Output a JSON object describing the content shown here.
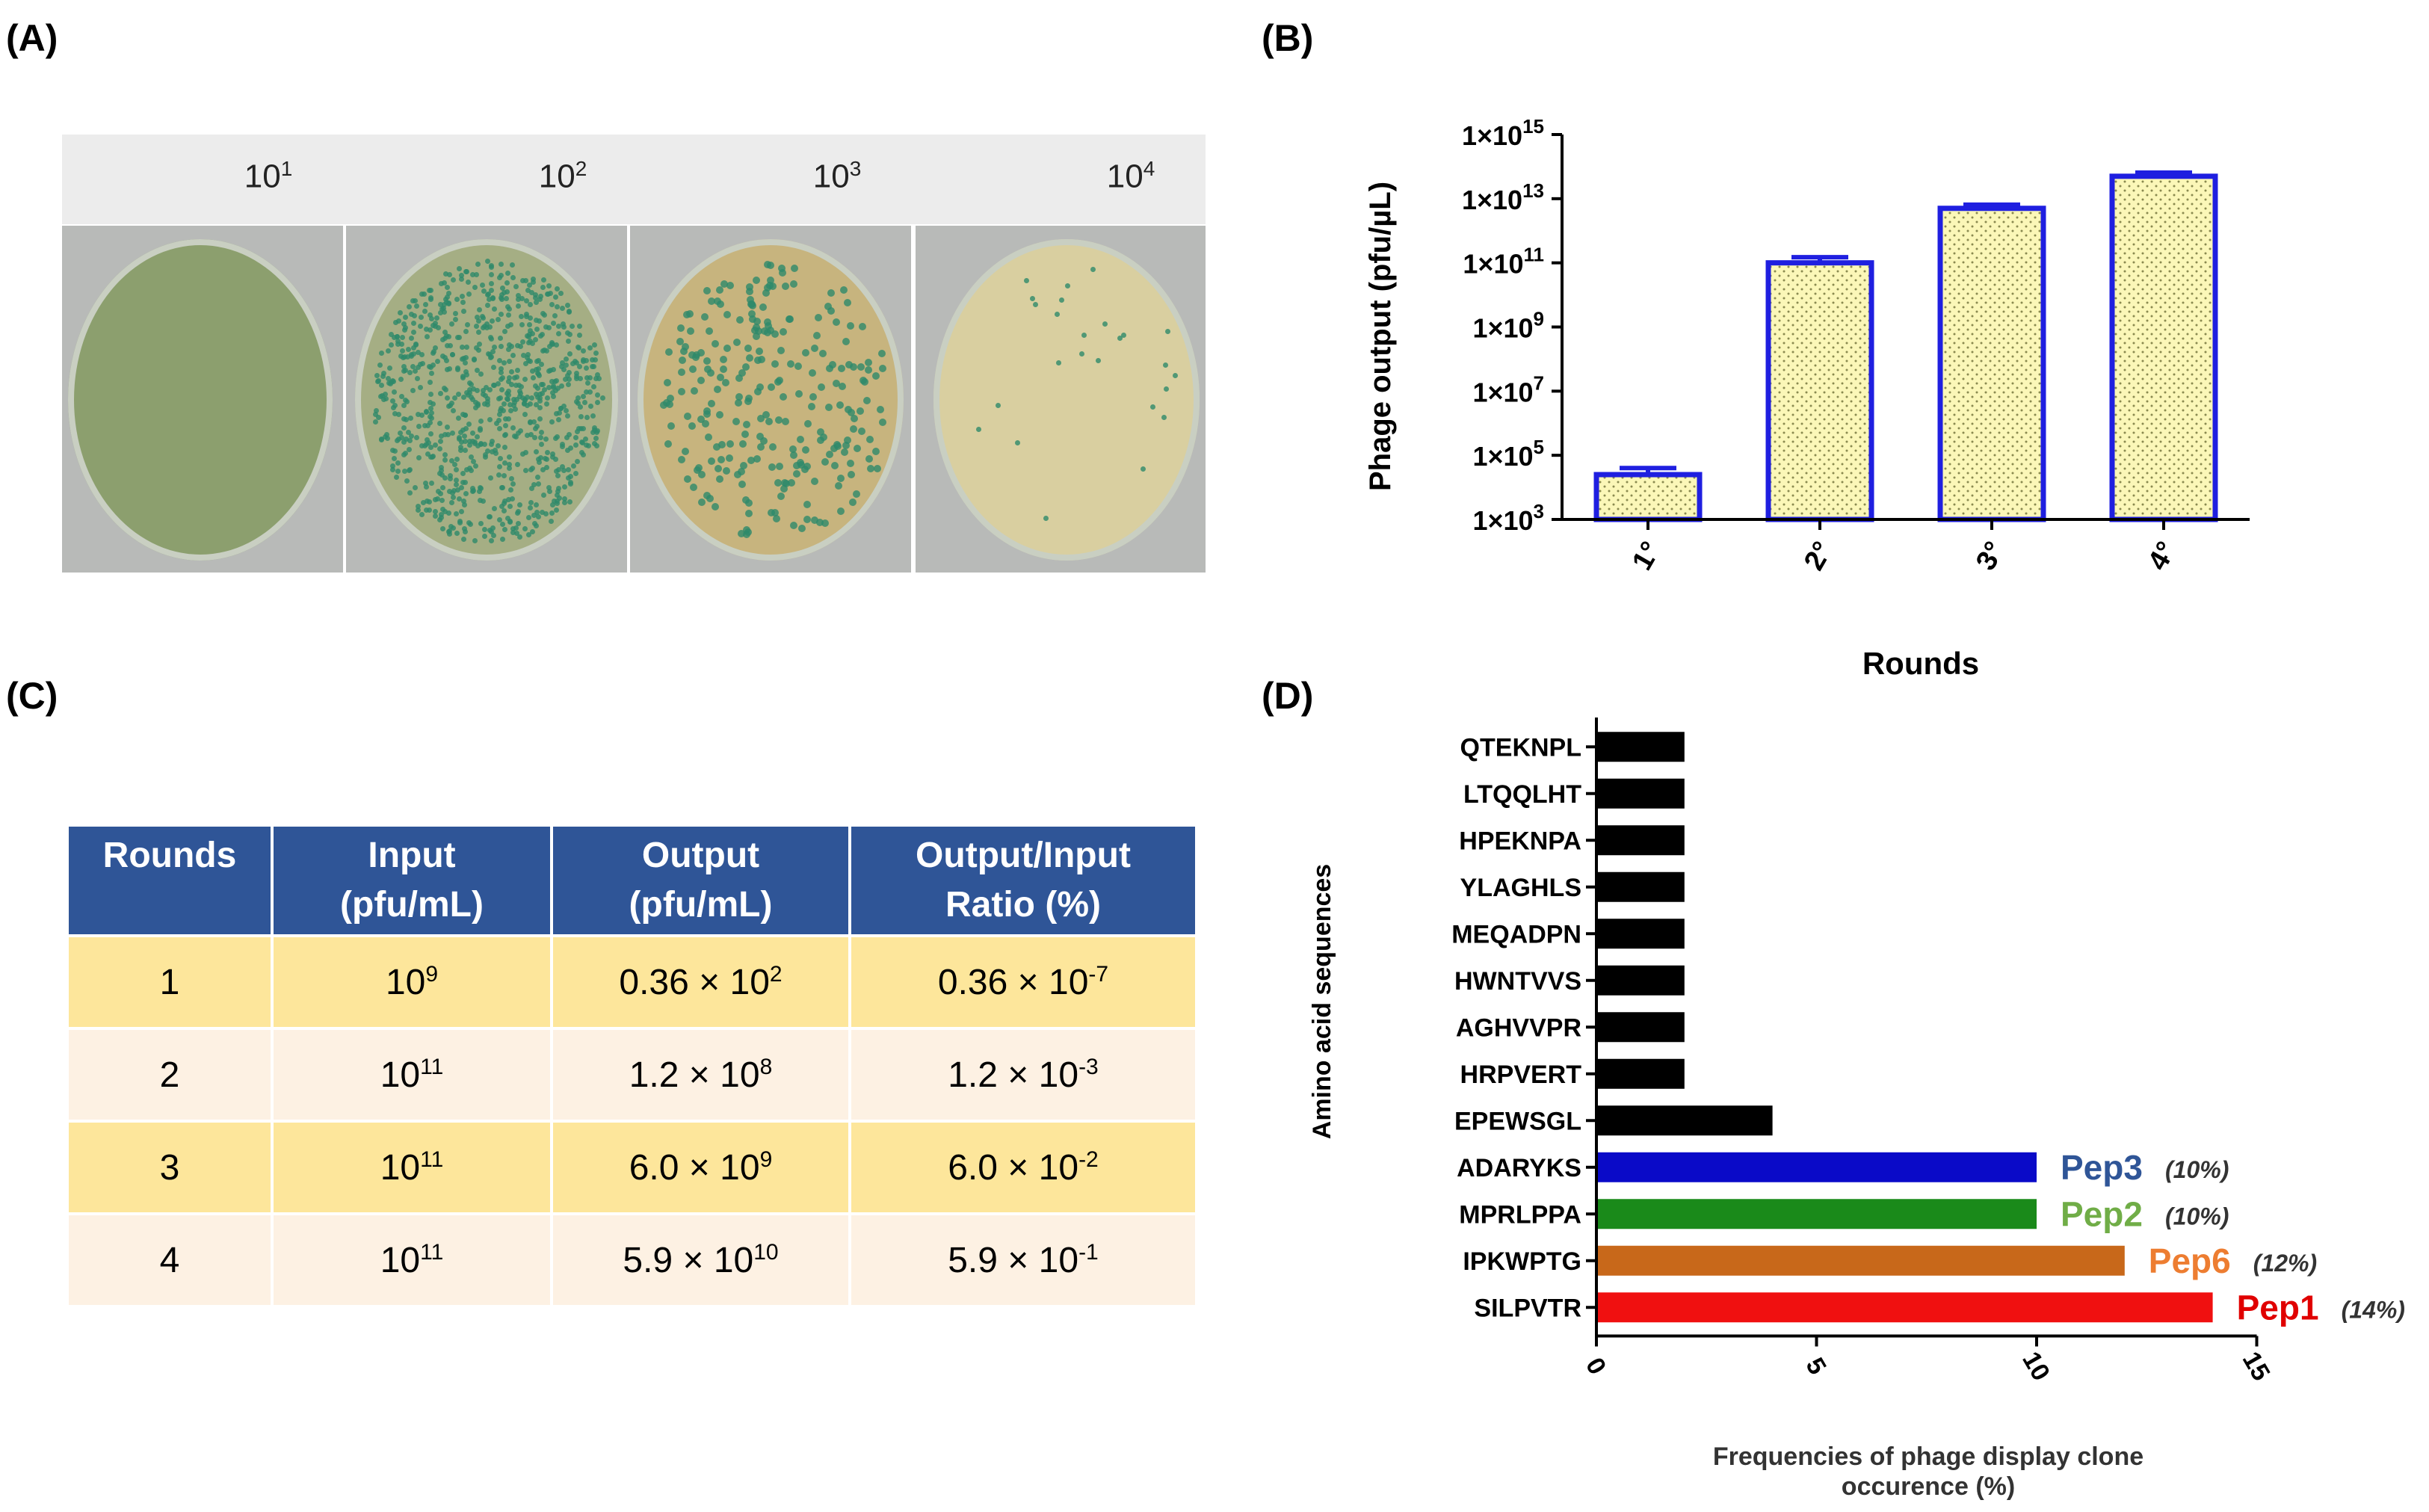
{
  "panel_labels": {
    "a": "(A)",
    "b": "(B)",
    "c": "(C)",
    "d": "(D)"
  },
  "panel_a": {
    "dilutions": [
      {
        "base": "10",
        "exp": "1"
      },
      {
        "base": "10",
        "exp": "2"
      },
      {
        "base": "10",
        "exp": "3"
      },
      {
        "base": "10",
        "exp": "4"
      }
    ],
    "plate_colors": {
      "background": "#b8bab8",
      "plate1": "#8c9f6e",
      "plate2": "#a5ae84",
      "plate3": "#c7b47e",
      "plate4": "#d9cfa0",
      "colony": "#2e8a6a"
    }
  },
  "chart_data": [
    {
      "type": "bar",
      "panel": "B",
      "ylabel": "Phage output (pfu/µL)",
      "xlabel": "Rounds",
      "yscale": "log10",
      "ylim": [
        1000,
        1000000000000000
      ],
      "categories": [
        "1°",
        "2°",
        "3°",
        "4°"
      ],
      "values": [
        25000,
        100000000000,
        5000000000000,
        50000000000000
      ],
      "error_upper": [
        40000,
        150000000000,
        6500000000000,
        65000000000000
      ],
      "ytick_labels": [
        {
          "base": "1×10",
          "exp": "3"
        },
        {
          "base": "1×10",
          "exp": "5"
        },
        {
          "base": "1×10",
          "exp": "7"
        },
        {
          "base": "1×10",
          "exp": "9"
        },
        {
          "base": "1×10",
          "exp": "11"
        },
        {
          "base": "1×10",
          "exp": "13"
        },
        {
          "base": "1×10",
          "exp": "15"
        }
      ],
      "colors": {
        "edge": "#1f1fe0",
        "fill": "#fbf7b8",
        "dots": "#8a8a50"
      }
    },
    {
      "type": "bar",
      "panel": "D",
      "orientation": "horizontal",
      "ylabel": "Amino acid sequences",
      "xlabel": "Frequencies of phage display clone occurence (%)",
      "xlim": [
        0,
        15
      ],
      "xticks": [
        "0",
        "5",
        "10",
        "15"
      ],
      "categories": [
        "QTEKNPL",
        "LTQQLHT",
        "HPEKNPA",
        "YLAGHLS",
        "MEQADPN",
        "HWNTVVS",
        "AGHVVPR",
        "HRPVERT",
        "EPEWSGL",
        "ADARYKS",
        "MPRLPPA",
        "IPKWPTG",
        "SILPVTR"
      ],
      "values": [
        2,
        2,
        2,
        2,
        2,
        2,
        2,
        2,
        4,
        10,
        10,
        12,
        14
      ],
      "bar_colors": [
        "#000000",
        "#000000",
        "#000000",
        "#000000",
        "#000000",
        "#000000",
        "#000000",
        "#000000",
        "#000000",
        "#0a0ac8",
        "#1a8a1a",
        "#c8681a",
        "#f01010"
      ],
      "annotations": [
        {
          "category": "ADARYKS",
          "name": "Pep3",
          "pct": "(10%)",
          "color": "#2f5597"
        },
        {
          "category": "MPRLPPA",
          "name": "Pep2",
          "pct": "(10%)",
          "color": "#70ad47"
        },
        {
          "category": "IPKWPTG",
          "name": "Pep6",
          "pct": "(12%)",
          "color": "#ed7d31"
        },
        {
          "category": "SILPVTR",
          "name": "Pep1",
          "pct": "(14%)",
          "color": "#e00000"
        }
      ]
    }
  ],
  "table": {
    "headers": [
      [
        "Rounds"
      ],
      [
        "Input",
        "(pfu/mL)"
      ],
      [
        "Output",
        "(pfu/mL)"
      ],
      [
        "Output/Input",
        "Ratio (%)"
      ]
    ],
    "rows": [
      {
        "round": "1",
        "input": {
          "b": "10",
          "e": "9"
        },
        "output": {
          "b": "0.36 ×  10",
          "e": "2"
        },
        "ratio": {
          "b": "0.36 × 10",
          "e": "-7"
        }
      },
      {
        "round": "2",
        "input": {
          "b": "10",
          "e": "11"
        },
        "output": {
          "b": "1.2 × 10",
          "e": "8"
        },
        "ratio": {
          "b": "1.2 × 10",
          "e": "-3"
        }
      },
      {
        "round": "3",
        "input": {
          "b": "10",
          "e": "11"
        },
        "output": {
          "b": "6.0 × 10",
          "e": "9"
        },
        "ratio": {
          "b": "6.0 × 10",
          "e": "-2"
        }
      },
      {
        "round": "4",
        "input": {
          "b": "10",
          "e": "11"
        },
        "output": {
          "b": "5.9 × 10",
          "e": "10"
        },
        "ratio": {
          "b": "5.9 × 10",
          "e": "-1"
        }
      }
    ]
  }
}
